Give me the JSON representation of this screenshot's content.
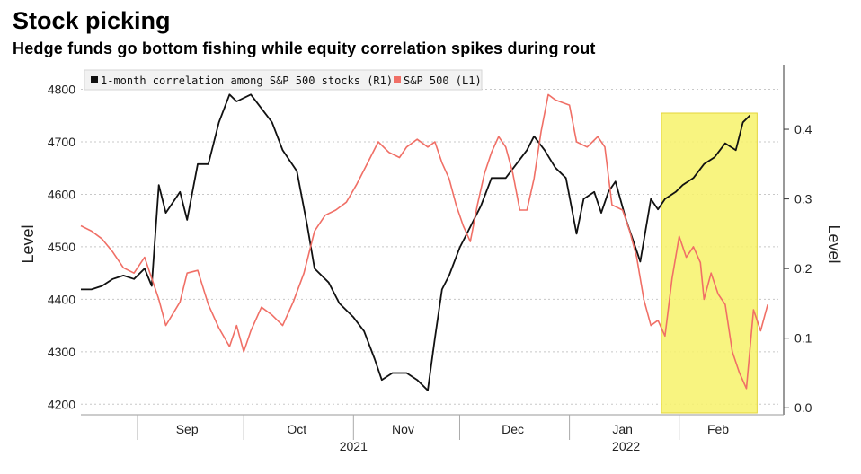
{
  "title": "Stock picking",
  "subtitle": "Hedge funds go bottom fishing while equity correlation spikes during rout",
  "colors": {
    "correlation": "#111111",
    "sp500": "#f06f66",
    "highlight": "#f7f26a",
    "grid": "#c8c8c8"
  },
  "legend": {
    "correlation_label": "1-month correlation among S&P 500 stocks (R1)",
    "sp500_label": "S&P 500 (L1)"
  },
  "chart_data": {
    "type": "line",
    "title": "Stock picking",
    "subtitle": "Hedge funds go bottom fishing while equity correlation spikes during rout",
    "ylabel_left": "Level",
    "ylabel_right": "Level",
    "ylim_left": [
      4180,
      4830
    ],
    "ylim_right": [
      -0.01,
      0.48
    ],
    "left_ticks": [
      4200,
      4300,
      4400,
      4500,
      4600,
      4700,
      4800
    ],
    "right_ticks": [
      "0.0",
      "0.1",
      "0.2",
      "0.3",
      "0.4"
    ],
    "month_labels": [
      "Sep",
      "Oct",
      "Nov",
      "Dec",
      "Jan",
      "Feb"
    ],
    "year_labels": [
      "2021",
      "2022"
    ],
    "legend_position": "top-left",
    "grid": "horizontal dotted",
    "highlight_range": [
      "2022-01-27",
      "2022-02-23"
    ],
    "series": [
      {
        "name": "1-month correlation among S&P 500 stocks (R1)",
        "axis": "right",
        "points": [
          [
            "2021-08-16",
            0.17
          ],
          [
            "2021-08-19",
            0.17
          ],
          [
            "2021-08-22",
            0.175
          ],
          [
            "2021-08-25",
            0.185
          ],
          [
            "2021-08-28",
            0.19
          ],
          [
            "2021-08-31",
            0.185
          ],
          [
            "2021-09-03",
            0.2
          ],
          [
            "2021-09-05",
            0.175
          ],
          [
            "2021-09-07",
            0.32
          ],
          [
            "2021-09-09",
            0.28
          ],
          [
            "2021-09-13",
            0.31
          ],
          [
            "2021-09-15",
            0.27
          ],
          [
            "2021-09-18",
            0.35
          ],
          [
            "2021-09-21",
            0.35
          ],
          [
            "2021-09-24",
            0.41
          ],
          [
            "2021-09-27",
            0.45
          ],
          [
            "2021-09-29",
            0.44
          ],
          [
            "2021-10-03",
            0.45
          ],
          [
            "2021-10-06",
            0.43
          ],
          [
            "2021-10-09",
            0.41
          ],
          [
            "2021-10-12",
            0.37
          ],
          [
            "2021-10-16",
            0.34
          ],
          [
            "2021-10-19",
            0.26
          ],
          [
            "2021-10-21",
            0.2
          ],
          [
            "2021-10-25",
            0.18
          ],
          [
            "2021-10-28",
            0.15
          ],
          [
            "2021-11-01",
            0.13
          ],
          [
            "2021-11-04",
            0.11
          ],
          [
            "2021-11-07",
            0.07
          ],
          [
            "2021-11-09",
            0.04
          ],
          [
            "2021-11-12",
            0.05
          ],
          [
            "2021-11-16",
            0.05
          ],
          [
            "2021-11-19",
            0.04
          ],
          [
            "2021-11-22",
            0.025
          ],
          [
            "2021-11-24",
            0.1
          ],
          [
            "2021-11-26",
            0.17
          ],
          [
            "2021-11-28",
            0.19
          ],
          [
            "2021-12-01",
            0.23
          ],
          [
            "2021-12-03",
            0.25
          ],
          [
            "2021-12-07",
            0.29
          ],
          [
            "2021-12-10",
            0.33
          ],
          [
            "2021-12-14",
            0.33
          ],
          [
            "2021-12-17",
            0.35
          ],
          [
            "2021-12-20",
            0.37
          ],
          [
            "2021-12-22",
            0.39
          ],
          [
            "2021-12-25",
            0.37
          ],
          [
            "2021-12-28",
            0.345
          ],
          [
            "2021-12-31",
            0.33
          ],
          [
            "2022-01-03",
            0.25
          ],
          [
            "2022-01-05",
            0.3
          ],
          [
            "2022-01-08",
            0.31
          ],
          [
            "2022-01-10",
            0.28
          ],
          [
            "2022-01-12",
            0.31
          ],
          [
            "2022-01-14",
            0.325
          ],
          [
            "2022-01-17",
            0.27
          ],
          [
            "2022-01-19",
            0.24
          ],
          [
            "2022-01-21",
            0.21
          ],
          [
            "2022-01-24",
            0.3
          ],
          [
            "2022-01-26",
            0.285
          ],
          [
            "2022-01-28",
            0.3
          ],
          [
            "2022-01-31",
            0.31
          ],
          [
            "2022-02-02",
            0.32
          ],
          [
            "2022-02-05",
            0.33
          ],
          [
            "2022-02-08",
            0.35
          ],
          [
            "2022-02-11",
            0.36
          ],
          [
            "2022-02-14",
            0.38
          ],
          [
            "2022-02-17",
            0.37
          ],
          [
            "2022-02-19",
            0.41
          ],
          [
            "2022-02-21",
            0.42
          ]
        ]
      },
      {
        "name": "S&P 500 (L1)",
        "axis": "left",
        "points": [
          [
            "2021-08-16",
            4540
          ],
          [
            "2021-08-19",
            4530
          ],
          [
            "2021-08-22",
            4515
          ],
          [
            "2021-08-25",
            4490
          ],
          [
            "2021-08-28",
            4460
          ],
          [
            "2021-08-31",
            4450
          ],
          [
            "2021-09-03",
            4480
          ],
          [
            "2021-09-05",
            4440
          ],
          [
            "2021-09-07",
            4400
          ],
          [
            "2021-09-09",
            4350
          ],
          [
            "2021-09-13",
            4395
          ],
          [
            "2021-09-15",
            4450
          ],
          [
            "2021-09-18",
            4455
          ],
          [
            "2021-09-21",
            4390
          ],
          [
            "2021-09-24",
            4345
          ],
          [
            "2021-09-27",
            4310
          ],
          [
            "2021-09-29",
            4350
          ],
          [
            "2021-10-01",
            4300
          ],
          [
            "2021-10-03",
            4340
          ],
          [
            "2021-10-06",
            4385
          ],
          [
            "2021-10-09",
            4370
          ],
          [
            "2021-10-12",
            4350
          ],
          [
            "2021-10-15",
            4395
          ],
          [
            "2021-10-18",
            4450
          ],
          [
            "2021-10-21",
            4530
          ],
          [
            "2021-10-24",
            4560
          ],
          [
            "2021-10-27",
            4570
          ],
          [
            "2021-10-30",
            4585
          ],
          [
            "2021-11-02",
            4620
          ],
          [
            "2021-11-05",
            4660
          ],
          [
            "2021-11-08",
            4700
          ],
          [
            "2021-11-11",
            4680
          ],
          [
            "2021-11-14",
            4670
          ],
          [
            "2021-11-16",
            4690
          ],
          [
            "2021-11-19",
            4705
          ],
          [
            "2021-11-22",
            4690
          ],
          [
            "2021-11-24",
            4700
          ],
          [
            "2021-11-26",
            4660
          ],
          [
            "2021-11-28",
            4630
          ],
          [
            "2021-11-30",
            4580
          ],
          [
            "2021-12-02",
            4540
          ],
          [
            "2021-12-04",
            4510
          ],
          [
            "2021-12-06",
            4580
          ],
          [
            "2021-12-08",
            4640
          ],
          [
            "2021-12-10",
            4680
          ],
          [
            "2021-12-12",
            4710
          ],
          [
            "2021-12-14",
            4690
          ],
          [
            "2021-12-16",
            4640
          ],
          [
            "2021-12-18",
            4570
          ],
          [
            "2021-12-20",
            4570
          ],
          [
            "2021-12-22",
            4630
          ],
          [
            "2021-12-24",
            4720
          ],
          [
            "2021-12-26",
            4790
          ],
          [
            "2021-12-28",
            4780
          ],
          [
            "2021-12-30",
            4775
          ],
          [
            "2022-01-01",
            4770
          ],
          [
            "2022-01-03",
            4700
          ],
          [
            "2022-01-06",
            4690
          ],
          [
            "2022-01-09",
            4710
          ],
          [
            "2022-01-11",
            4690
          ],
          [
            "2022-01-13",
            4580
          ],
          [
            "2022-01-16",
            4570
          ],
          [
            "2022-01-18",
            4530
          ],
          [
            "2022-01-20",
            4480
          ],
          [
            "2022-01-22",
            4400
          ],
          [
            "2022-01-24",
            4350
          ],
          [
            "2022-01-26",
            4360
          ],
          [
            "2022-01-28",
            4330
          ],
          [
            "2022-01-30",
            4440
          ],
          [
            "2022-02-01",
            4520
          ],
          [
            "2022-02-03",
            4480
          ],
          [
            "2022-02-05",
            4500
          ],
          [
            "2022-02-07",
            4470
          ],
          [
            "2022-02-08",
            4400
          ],
          [
            "2022-02-10",
            4450
          ],
          [
            "2022-02-12",
            4410
          ],
          [
            "2022-02-14",
            4390
          ],
          [
            "2022-02-16",
            4300
          ],
          [
            "2022-02-18",
            4260
          ],
          [
            "2022-02-20",
            4230
          ],
          [
            "2022-02-22",
            4380
          ],
          [
            "2022-02-24",
            4340
          ],
          [
            "2022-02-26",
            4390
          ]
        ]
      }
    ]
  }
}
